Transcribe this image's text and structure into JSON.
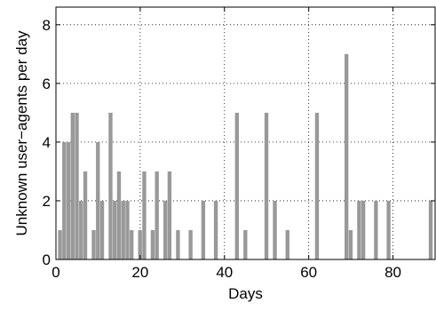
{
  "chart_data": {
    "type": "bar",
    "xlabel": "Days",
    "ylabel": "Unknown user−agents per day",
    "xlim": [
      0,
      90
    ],
    "ylim": [
      0,
      8.6
    ],
    "xticks": [
      0,
      20,
      40,
      60,
      80
    ],
    "yticks": [
      0,
      2,
      4,
      6,
      8
    ],
    "grid": true,
    "bar_color": "#999999",
    "bars": [
      {
        "x": 1,
        "y": 1
      },
      {
        "x": 2,
        "y": 4
      },
      {
        "x": 3,
        "y": 4
      },
      {
        "x": 4,
        "y": 5
      },
      {
        "x": 5,
        "y": 5
      },
      {
        "x": 6,
        "y": 2
      },
      {
        "x": 7,
        "y": 3
      },
      {
        "x": 9,
        "y": 1
      },
      {
        "x": 10,
        "y": 4
      },
      {
        "x": 11,
        "y": 2
      },
      {
        "x": 13,
        "y": 5
      },
      {
        "x": 14,
        "y": 2
      },
      {
        "x": 15,
        "y": 3
      },
      {
        "x": 16,
        "y": 2
      },
      {
        "x": 17,
        "y": 2
      },
      {
        "x": 18,
        "y": 1
      },
      {
        "x": 20,
        "y": 1
      },
      {
        "x": 21,
        "y": 3
      },
      {
        "x": 23,
        "y": 1
      },
      {
        "x": 24,
        "y": 3
      },
      {
        "x": 26,
        "y": 2
      },
      {
        "x": 27,
        "y": 3
      },
      {
        "x": 29,
        "y": 1
      },
      {
        "x": 32,
        "y": 1
      },
      {
        "x": 35,
        "y": 2
      },
      {
        "x": 38,
        "y": 2
      },
      {
        "x": 43,
        "y": 5
      },
      {
        "x": 45,
        "y": 1
      },
      {
        "x": 50,
        "y": 5
      },
      {
        "x": 52,
        "y": 2
      },
      {
        "x": 55,
        "y": 1
      },
      {
        "x": 62,
        "y": 5
      },
      {
        "x": 69,
        "y": 7
      },
      {
        "x": 70,
        "y": 1
      },
      {
        "x": 72,
        "y": 2
      },
      {
        "x": 73,
        "y": 2
      },
      {
        "x": 76,
        "y": 2
      },
      {
        "x": 79,
        "y": 2
      },
      {
        "x": 89,
        "y": 2
      }
    ]
  }
}
